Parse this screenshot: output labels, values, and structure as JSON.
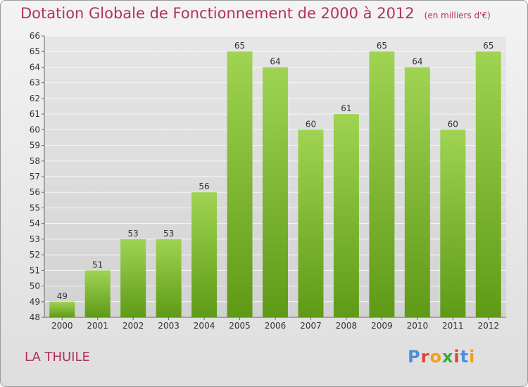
{
  "header": {
    "title": "Dotation Globale de Fonctionnement de 2000 à 2012",
    "subtitle": "(en milliers d'€)"
  },
  "footer": {
    "commune": "LA THUILE",
    "logo": "Proxiti",
    "logo_colors": [
      "#4a90d9",
      "#e8422a",
      "#f0a020",
      "#3aa83a",
      "#e8422a",
      "#4a90d9",
      "#f0a020"
    ]
  },
  "chart_data": {
    "type": "bar",
    "title": "Dotation Globale de Fonctionnement de 2000 à 2012",
    "subtitle": "(en milliers d'€)",
    "categories": [
      "2000",
      "2001",
      "2002",
      "2003",
      "2004",
      "2005",
      "2006",
      "2007",
      "2008",
      "2009",
      "2010",
      "2011",
      "2012"
    ],
    "values": [
      49,
      51,
      53,
      53,
      56,
      65,
      64,
      60,
      61,
      65,
      64,
      60,
      65
    ],
    "ylim": [
      48,
      66
    ],
    "yticks": [
      48,
      49,
      50,
      51,
      52,
      53,
      54,
      55,
      56,
      57,
      58,
      59,
      60,
      61,
      62,
      63,
      64,
      65,
      66
    ],
    "grid": true,
    "bar_color_top": "#9fd452",
    "bar_color_bottom": "#5f9a17"
  }
}
